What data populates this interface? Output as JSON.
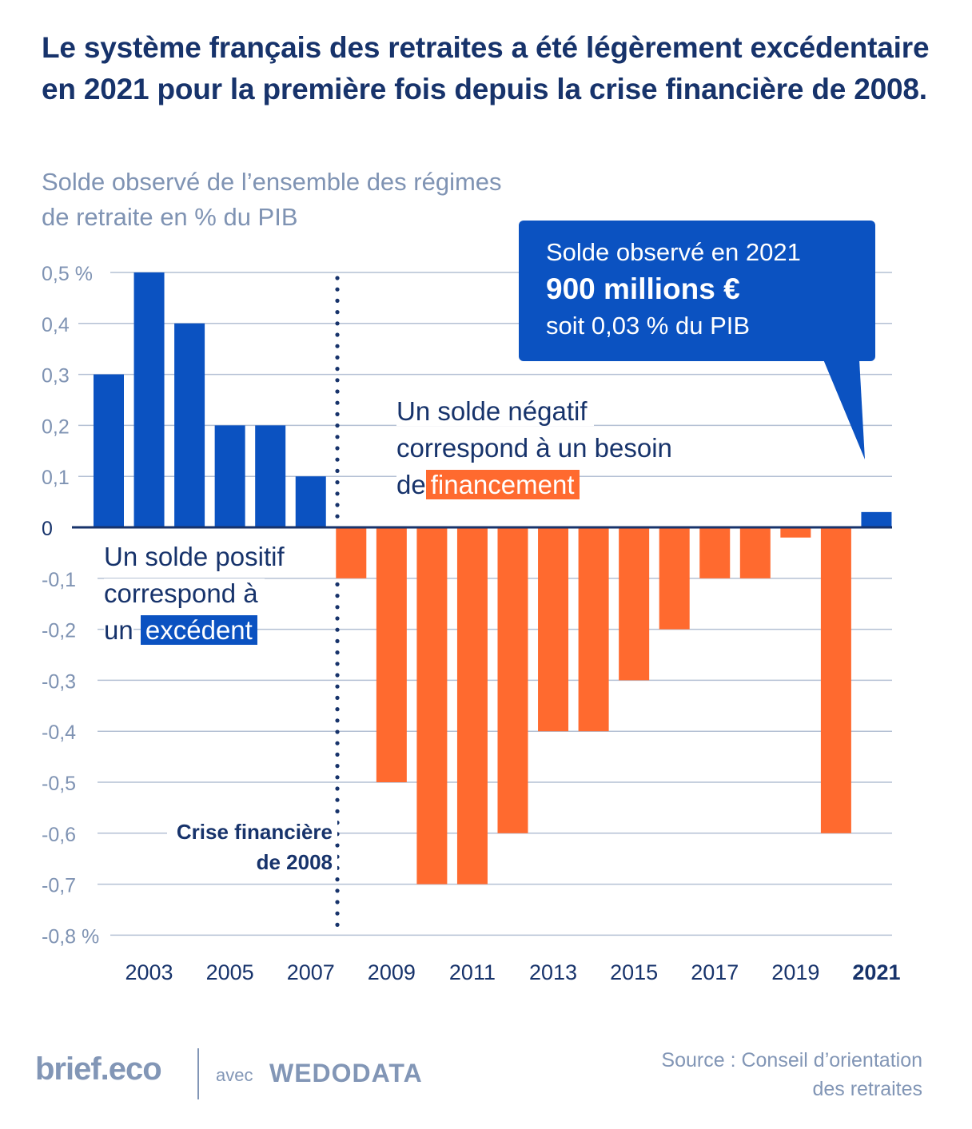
{
  "header": {
    "title": "Le système français des retraites a été légèrement excédentaire en 2021 pour la première fois depuis la crise financière de 2008.",
    "subtitle": "Solde observé de l’ensemble des régimes de retraite en % du PIB"
  },
  "callout": {
    "line1": "Solde observé en 2021",
    "line2": "900 millions €",
    "line3": "soit 0,03 % du PIB"
  },
  "annotations": {
    "negative_prefix_1": "Un solde négatif",
    "negative_prefix_2": "correspond à un besoin",
    "negative_prefix_3": "de",
    "negative_highlight": "financement",
    "positive_1": "Un solde positif",
    "positive_2": "correspond à",
    "positive_3": "un",
    "positive_highlight": "excédent",
    "crisis_1": "Crise financière",
    "crisis_2": "de 2008"
  },
  "colors": {
    "positive": "#0b52c1",
    "negative": "#ff6a2f",
    "title": "#17336b",
    "muted": "#7f93b3",
    "grid": "#b4c0d4"
  },
  "footer": {
    "brand": "brief.eco",
    "avec": "avec",
    "partner": "WEDODATA",
    "source_line1": "Source : Conseil d’orientation",
    "source_line2": "des retraites"
  },
  "chart_data": {
    "type": "bar",
    "title": "Solde observé de l’ensemble des régimes de retraite en % du PIB",
    "xlabel": "",
    "ylabel": "% du PIB",
    "ylim": [
      -0.8,
      0.5
    ],
    "grid": true,
    "categories": [
      "2002",
      "2003",
      "2004",
      "2005",
      "2006",
      "2007",
      "2008",
      "2009",
      "2010",
      "2011",
      "2012",
      "2013",
      "2014",
      "2015",
      "2016",
      "2017",
      "2018",
      "2019",
      "2020",
      "2021"
    ],
    "values": [
      0.3,
      0.5,
      0.4,
      0.2,
      0.2,
      0.1,
      -0.1,
      -0.5,
      -0.7,
      -0.7,
      -0.6,
      -0.4,
      -0.4,
      -0.3,
      -0.2,
      -0.1,
      -0.1,
      -0.02,
      -0.6,
      0.03
    ],
    "x_tick_labels": [
      "2003",
      "2005",
      "2007",
      "2009",
      "2011",
      "2013",
      "2015",
      "2017",
      "2019",
      "2021"
    ],
    "highlighted_tick": "2021",
    "y_ticks": [
      {
        "value": 0.5,
        "label": "0,5 %"
      },
      {
        "value": 0.4,
        "label": "0,4"
      },
      {
        "value": 0.3,
        "label": "0,3"
      },
      {
        "value": 0.2,
        "label": "0,2"
      },
      {
        "value": 0.1,
        "label": "0,1"
      },
      {
        "value": 0,
        "label": "0"
      },
      {
        "value": -0.1,
        "label": "-0,1"
      },
      {
        "value": -0.2,
        "label": "-0,2"
      },
      {
        "value": -0.3,
        "label": "-0,3"
      },
      {
        "value": -0.4,
        "label": "-0,4"
      },
      {
        "value": -0.5,
        "label": "-0,5"
      },
      {
        "value": -0.6,
        "label": "-0,6"
      },
      {
        "value": -0.7,
        "label": "-0,7"
      },
      {
        "value": -0.8,
        "label": "-0,8 %"
      }
    ],
    "reference_line": {
      "at_category_between": [
        "2007",
        "2008"
      ],
      "label": "Crise financière de 2008",
      "style": "dotted"
    }
  }
}
